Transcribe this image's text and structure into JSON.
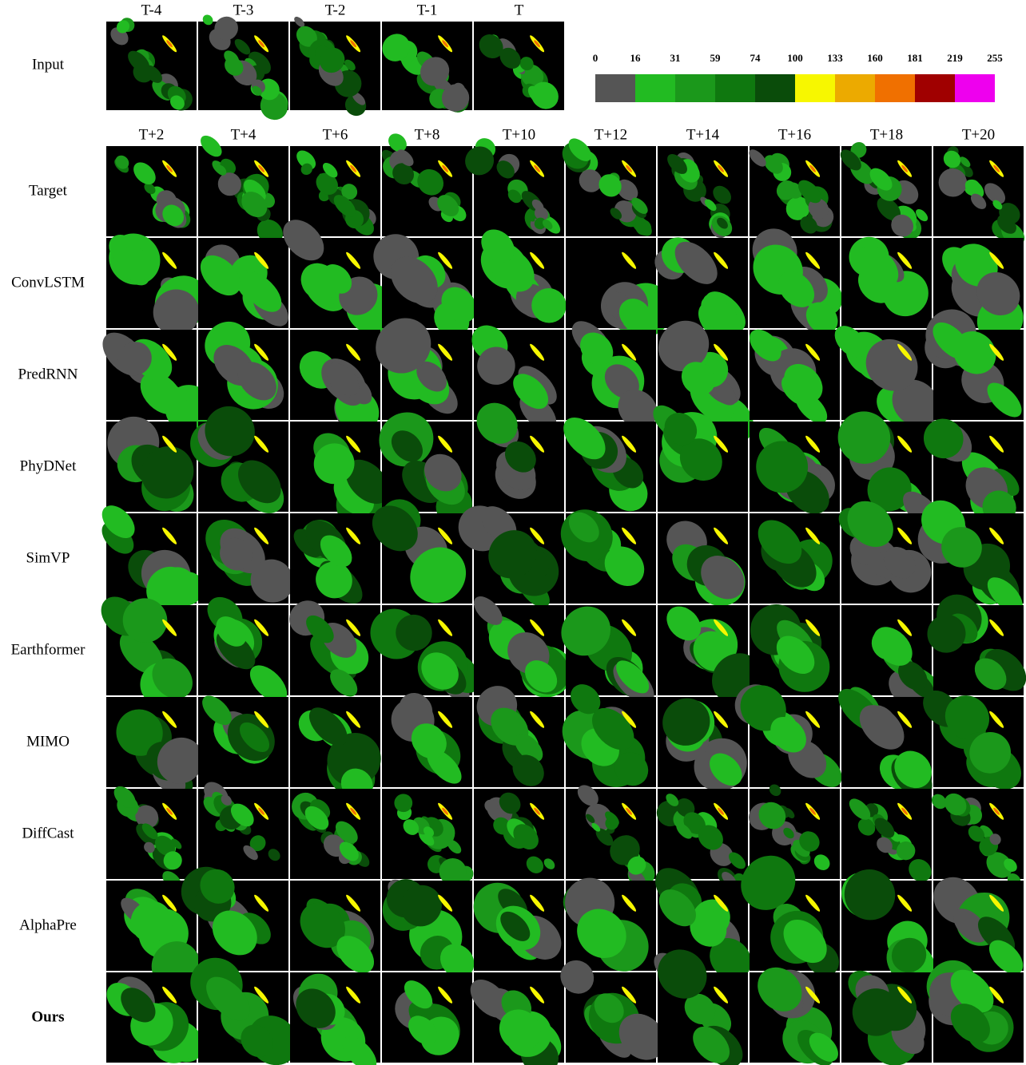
{
  "input": {
    "label": "Input",
    "frames": [
      "T-4",
      "T-3",
      "T-2",
      "T-1",
      "T"
    ]
  },
  "colorbar": {
    "ticks": [
      0,
      16,
      31,
      59,
      74,
      100,
      133,
      160,
      181,
      219,
      255
    ],
    "colors": [
      "#555555",
      "#22bb22",
      "#1b981b",
      "#0f780f",
      "#0a4c0a",
      "#f7f700",
      "#ecaa00",
      "#f07000",
      "#a00000",
      "#ee00ee"
    ]
  },
  "output": {
    "frames": [
      "T+2",
      "T+4",
      "T+6",
      "T+8",
      "T+10",
      "T+12",
      "T+14",
      "T+16",
      "T+18",
      "T+20"
    ]
  },
  "rows": [
    "Target",
    "ConvLSTM",
    "PredRNN",
    "PhyDNet",
    "SimVP",
    "Earthformer",
    "MIMO",
    "DiffCast",
    "AlphaPre",
    "Ours"
  ]
}
